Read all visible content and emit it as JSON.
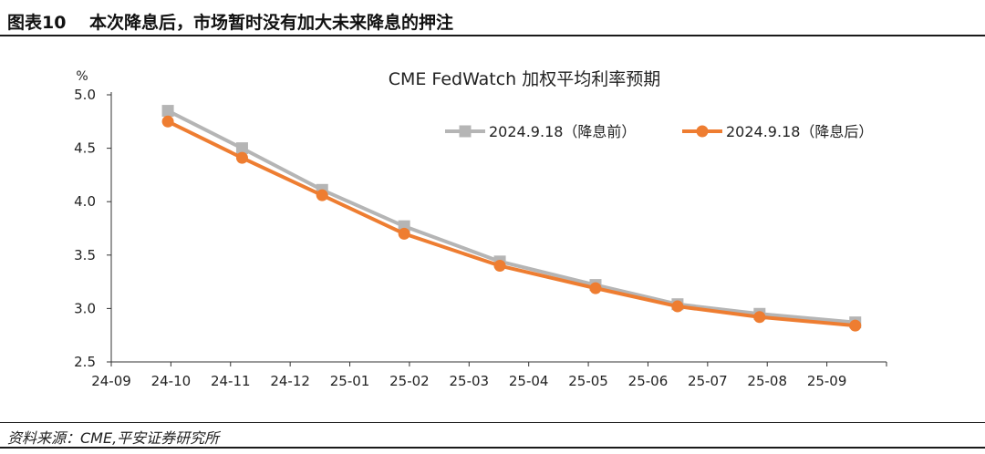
{
  "figure": {
    "label": "图表10",
    "title": "本次降息后，市场暂时没有加大未来降息的押注",
    "source": "资料来源：CME,平安证券研究所"
  },
  "chart_data": {
    "type": "line",
    "title": "CME FedWatch 加权平均利率预期",
    "ylabel": "%",
    "xlabel": "",
    "ylim": [
      2.5,
      5.0
    ],
    "yticks": [
      "2.5",
      "3.0",
      "3.5",
      "4.0",
      "4.5",
      "5.0"
    ],
    "xtick_labels": [
      "24-09",
      "24-10",
      "24-11",
      "24-12",
      "25-01",
      "25-02",
      "25-03",
      "25-04",
      "25-05",
      "25-06",
      "25-07",
      "25-08",
      "25-09"
    ],
    "grid": false,
    "legend": "top-right",
    "x": [
      "2024-09-30",
      "2024-11-07",
      "2024-12-18",
      "2025-01-29",
      "2025-03-19",
      "2025-05-07",
      "2025-06-18",
      "2025-07-30",
      "2025-09-17"
    ],
    "series": [
      {
        "name": "2024.9.18（降息前）",
        "color": "#b5b5b5",
        "marker": "square",
        "values": [
          4.85,
          4.5,
          4.11,
          3.77,
          3.44,
          3.22,
          3.04,
          2.95,
          2.87
        ]
      },
      {
        "name": "2024.9.18（降息后）",
        "color": "#ee7d31",
        "marker": "circle",
        "values": [
          4.75,
          4.41,
          4.06,
          3.7,
          3.4,
          3.19,
          3.02,
          2.92,
          2.84
        ]
      }
    ]
  }
}
